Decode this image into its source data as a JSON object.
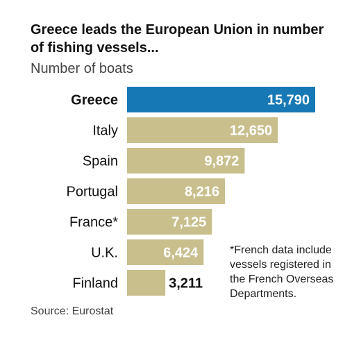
{
  "title": "Greece leads the European Union in number of fishing vessels...",
  "subtitle": "Number of boats",
  "footnote": "*French data include vessels registered in the French Overseas Departments.",
  "source": "Source: Eurostat",
  "colors": {
    "highlight": "#1679b5",
    "default": "#c9bf8d",
    "label_on_bar": "#ffffff",
    "label_off_bar": "#111111"
  },
  "chart_data": {
    "type": "bar",
    "orientation": "horizontal",
    "title": "Greece leads the European Union in number of fishing vessels...",
    "subtitle": "Number of boats",
    "categories": [
      "Greece",
      "Italy",
      "Spain",
      "Portugal",
      "France*",
      "U.K.",
      "Finland"
    ],
    "values": [
      15790,
      12650,
      9872,
      8216,
      7125,
      6424,
      3211
    ],
    "value_labels": [
      "15,790",
      "12,650",
      "9,872",
      "8,216",
      "7,125",
      "6,424",
      "3,211"
    ],
    "highlight_category": "Greece",
    "xlim": [
      0,
      15790
    ],
    "grid": false,
    "legend": "none"
  }
}
